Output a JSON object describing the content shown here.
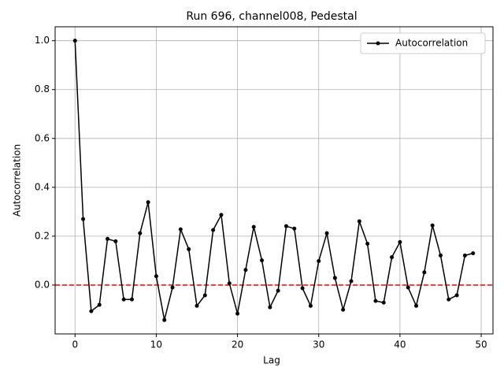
{
  "chart_data": {
    "type": "line",
    "title": "Run 696, channel008, Pedestal",
    "x_label": "Lag",
    "y_label": "Autocorrelation",
    "x": [
      0,
      1,
      2,
      3,
      4,
      5,
      6,
      7,
      8,
      9,
      10,
      11,
      12,
      13,
      14,
      15,
      16,
      17,
      18,
      19,
      20,
      21,
      22,
      23,
      24,
      25,
      26,
      27,
      28,
      29,
      30,
      31,
      32,
      33,
      34,
      35,
      36,
      37,
      38,
      39,
      40,
      41,
      42,
      43,
      44,
      45,
      46,
      47,
      48,
      49
    ],
    "series": [
      {
        "name": "Autocorrelation",
        "color": "#000000",
        "values": [
          1.0,
          0.27,
          -0.107,
          -0.081,
          0.189,
          0.179,
          -0.059,
          -0.059,
          0.212,
          0.339,
          0.036,
          -0.143,
          -0.01,
          0.228,
          0.147,
          -0.085,
          -0.042,
          0.225,
          0.287,
          0.007,
          -0.117,
          0.062,
          0.238,
          0.101,
          -0.091,
          -0.023,
          0.241,
          0.231,
          -0.013,
          -0.085,
          0.098,
          0.212,
          0.029,
          -0.101,
          0.016,
          0.261,
          0.169,
          -0.065,
          -0.072,
          0.114,
          0.176,
          -0.01,
          -0.085,
          0.052,
          0.244,
          0.121,
          -0.059,
          -0.042,
          0.121,
          0.13
        ]
      }
    ],
    "hline": {
      "value": 0,
      "color": "#ff0000"
    },
    "xlim": [
      -2.45,
      51.45
    ],
    "xticks": [
      0,
      10,
      20,
      30,
      40,
      50
    ],
    "ylim": [
      -0.2,
      1.057
    ],
    "yticks": [
      {
        "value": 0,
        "label": "0.0"
      },
      {
        "value": 0.2,
        "label": "0.2"
      },
      {
        "value": 0.4,
        "label": "0.4"
      },
      {
        "value": 0.6,
        "label": "0.6"
      },
      {
        "value": 0.8,
        "label": "0.8"
      },
      {
        "value": 1,
        "label": "1.0"
      }
    ],
    "grid": true,
    "legend": "upper right"
  }
}
